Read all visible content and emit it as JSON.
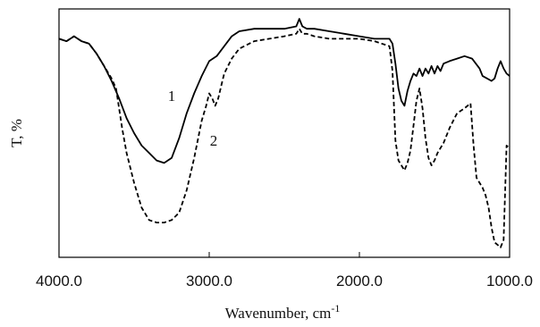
{
  "chart_data": {
    "type": "line",
    "xlabel": "Wavenumber, cm",
    "xlabel_superscript": "-1",
    "ylabel": "T, %",
    "xlim": [
      4000,
      1000
    ],
    "x_reversed": true,
    "ylim": [
      0,
      100
    ],
    "x_ticks": [
      4000,
      3000,
      2000,
      1000
    ],
    "x_tick_labels": [
      "4000.0",
      "3000.0",
      "2000.0",
      "1000.0"
    ],
    "y_ticks_labeled": false,
    "grid": false,
    "legend": "none",
    "series": [
      {
        "name": "1",
        "style": "solid",
        "color": "#000000",
        "x": [
          4000,
          3950,
          3900,
          3850,
          3800,
          3750,
          3700,
          3650,
          3600,
          3550,
          3500,
          3450,
          3400,
          3350,
          3300,
          3250,
          3200,
          3150,
          3100,
          3050,
          3000,
          2950,
          2900,
          2850,
          2800,
          2700,
          2600,
          2500,
          2420,
          2400,
          2380,
          2350,
          2300,
          2200,
          2100,
          2000,
          1900,
          1800,
          1780,
          1760,
          1740,
          1720,
          1700,
          1680,
          1660,
          1640,
          1620,
          1600,
          1580,
          1560,
          1540,
          1520,
          1500,
          1480,
          1460,
          1440,
          1400,
          1350,
          1300,
          1250,
          1200,
          1180,
          1150,
          1120,
          1100,
          1080,
          1060,
          1040,
          1020,
          1000
        ],
        "y": [
          88,
          87,
          89,
          87,
          86,
          82,
          77,
          71,
          64,
          56,
          50,
          45,
          42,
          39,
          38,
          40,
          48,
          58,
          66,
          73,
          79,
          81,
          85,
          89,
          91,
          92,
          92,
          92,
          93,
          96,
          93,
          92,
          92,
          91,
          90,
          89,
          88,
          88,
          86,
          78,
          68,
          63,
          61,
          67,
          71,
          74,
          73,
          76,
          73,
          76,
          74,
          77,
          74,
          77,
          75,
          78,
          79,
          80,
          81,
          80,
          76,
          73,
          72,
          71,
          72,
          76,
          79,
          76,
          74,
          73
        ]
      },
      {
        "name": "2",
        "style": "dashed",
        "color": "#000000",
        "x": [
          4000,
          3950,
          3900,
          3850,
          3800,
          3750,
          3700,
          3650,
          3620,
          3600,
          3580,
          3550,
          3500,
          3450,
          3400,
          3350,
          3300,
          3250,
          3200,
          3150,
          3100,
          3050,
          3020,
          3000,
          2980,
          2960,
          2940,
          2920,
          2900,
          2850,
          2800,
          2700,
          2600,
          2500,
          2420,
          2400,
          2380,
          2350,
          2300,
          2200,
          2100,
          2000,
          1900,
          1800,
          1780,
          1760,
          1740,
          1720,
          1700,
          1680,
          1660,
          1640,
          1620,
          1600,
          1580,
          1560,
          1540,
          1520,
          1500,
          1480,
          1460,
          1440,
          1400,
          1350,
          1300,
          1260,
          1240,
          1220,
          1200,
          1180,
          1160,
          1140,
          1120,
          1100,
          1080,
          1060,
          1040,
          1020,
          1000
        ],
        "y": [
          88,
          87,
          89,
          87,
          86,
          82,
          77,
          72,
          68,
          60,
          52,
          42,
          30,
          20,
          15,
          14,
          14,
          15,
          18,
          27,
          40,
          55,
          61,
          66,
          64,
          61,
          64,
          69,
          74,
          80,
          84,
          87,
          88,
          89,
          90,
          92,
          90,
          90,
          89,
          88,
          88,
          88,
          87,
          85,
          75,
          47,
          39,
          37,
          35,
          38,
          43,
          53,
          63,
          68,
          60,
          48,
          40,
          37,
          39,
          42,
          44,
          46,
          52,
          58,
          60,
          62,
          45,
          32,
          30,
          28,
          25,
          20,
          12,
          6,
          5,
          4,
          7,
          45,
          44
        ]
      }
    ],
    "annotations": [
      {
        "text": "1",
        "x": 3250,
        "y": 63
      },
      {
        "text": "2",
        "x": 2970,
        "y": 45
      }
    ]
  }
}
